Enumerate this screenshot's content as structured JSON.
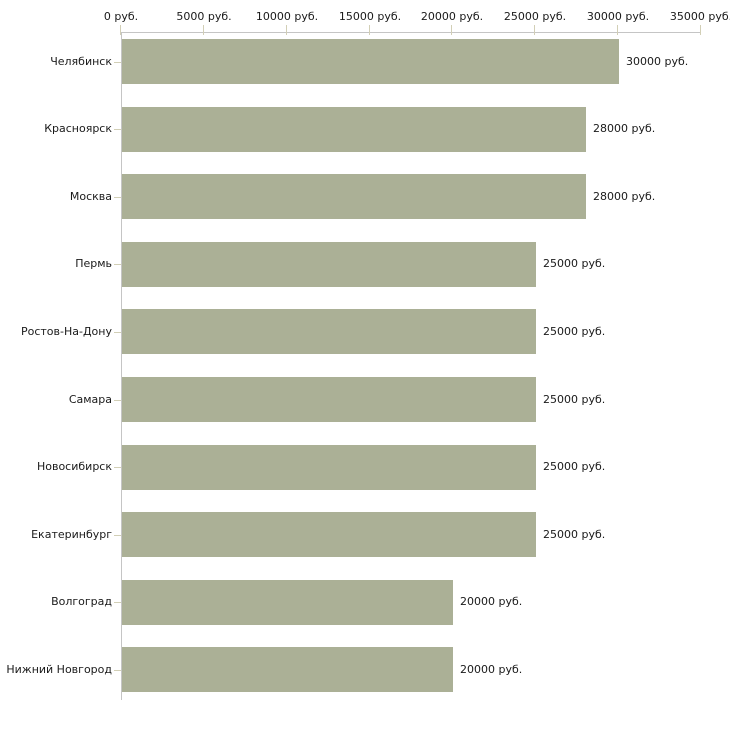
{
  "chart_data": {
    "type": "bar",
    "orientation": "horizontal",
    "title": "",
    "xlabel": "",
    "ylabel": "",
    "unit": "руб.",
    "xlim": [
      0,
      35000
    ],
    "grid": false,
    "legend": false,
    "categories": [
      "Челябинск",
      "Красноярск",
      "Москва",
      "Пермь",
      "Ростов-На-Дону",
      "Самара",
      "Новосибирск",
      "Екатеринбург",
      "Волгоград",
      "Нижний Новгород"
    ],
    "values": [
      30000,
      28000,
      28000,
      25000,
      25000,
      25000,
      25000,
      25000,
      20000,
      20000
    ],
    "value_labels": [
      "30000 руб.",
      "28000 руб.",
      "28000 руб.",
      "25000 руб.",
      "25000 руб.",
      "25000 руб.",
      "25000 руб.",
      "25000 руб.",
      "20000 руб.",
      "20000 руб."
    ],
    "x_ticks": [
      0,
      5000,
      10000,
      15000,
      20000,
      25000,
      30000,
      35000
    ],
    "x_tick_labels": [
      "0 руб.",
      "5000 руб.",
      "10000 руб.",
      "15000 руб.",
      "20000 руб.",
      "25000 руб.",
      "30000 руб.",
      "35000 руб."
    ],
    "colors": {
      "bar": "#abb096",
      "axis_line": "#c5c5c5",
      "tick": "#d2cfb6",
      "text": "#1a1a1a",
      "background": "#ffffff"
    }
  }
}
